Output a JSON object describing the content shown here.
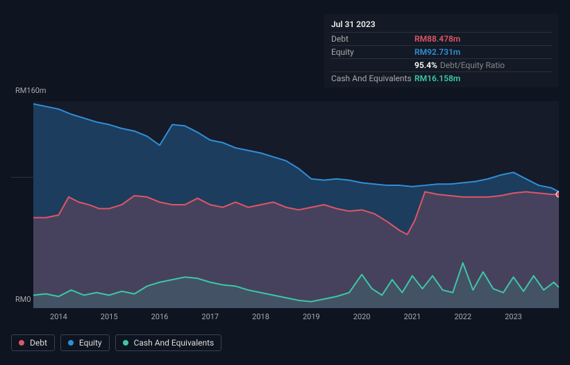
{
  "background_color": "#0e1420",
  "tooltip": {
    "date": "Jul 31 2023",
    "rows": [
      {
        "label": "Debt",
        "value": "RM88.478m",
        "color": "#e05565"
      },
      {
        "label": "Equity",
        "value": "RM92.731m",
        "color": "#2f8fd8"
      },
      {
        "label": "",
        "value": "95.4%",
        "suffix": "Debt/Equity Ratio",
        "color": "#ffffff"
      },
      {
        "label": "Cash And Equivalents",
        "value": "RM16.158m",
        "color": "#3bc9a6"
      }
    ]
  },
  "chart": {
    "type": "area",
    "y_max": 160,
    "y_min": 0,
    "y_top_label": "RM160m",
    "y_bot_label": "RM0",
    "ref_lines_y": [
      255
    ],
    "plot_bg": "#151b29",
    "x_years": [
      "2014",
      "2015",
      "2016",
      "2017",
      "2018",
      "2019",
      "2020",
      "2021",
      "2022",
      "2023"
    ],
    "x_start": 2013.5,
    "x_end": 2023.9,
    "series": {
      "equity": {
        "color": "#2f8fd8",
        "fill": "rgba(47,143,216,0.30)",
        "stroke_width": 2,
        "points": [
          [
            2013.5,
            158
          ],
          [
            2013.75,
            156
          ],
          [
            2014.0,
            154
          ],
          [
            2014.25,
            150
          ],
          [
            2014.5,
            147
          ],
          [
            2014.75,
            144
          ],
          [
            2015.0,
            142
          ],
          [
            2015.25,
            139
          ],
          [
            2015.5,
            137
          ],
          [
            2015.75,
            133
          ],
          [
            2016.0,
            126
          ],
          [
            2016.25,
            142
          ],
          [
            2016.5,
            141
          ],
          [
            2016.75,
            136
          ],
          [
            2017.0,
            130
          ],
          [
            2017.25,
            128
          ],
          [
            2017.5,
            124
          ],
          [
            2017.75,
            122
          ],
          [
            2018.0,
            120
          ],
          [
            2018.25,
            117
          ],
          [
            2018.5,
            114
          ],
          [
            2018.75,
            108
          ],
          [
            2019.0,
            100
          ],
          [
            2019.25,
            99
          ],
          [
            2019.5,
            100
          ],
          [
            2019.75,
            99
          ],
          [
            2020.0,
            97
          ],
          [
            2020.25,
            96
          ],
          [
            2020.5,
            95
          ],
          [
            2020.75,
            95
          ],
          [
            2021.0,
            94
          ],
          [
            2021.25,
            95
          ],
          [
            2021.5,
            96
          ],
          [
            2021.75,
            96
          ],
          [
            2022.0,
            97
          ],
          [
            2022.25,
            98
          ],
          [
            2022.5,
            100
          ],
          [
            2022.75,
            103
          ],
          [
            2023.0,
            105
          ],
          [
            2023.25,
            100
          ],
          [
            2023.5,
            95
          ],
          [
            2023.75,
            93
          ],
          [
            2023.9,
            90
          ]
        ]
      },
      "debt": {
        "color": "#e05565",
        "fill": "rgba(224,85,101,0.22)",
        "stroke_width": 2,
        "points": [
          [
            2013.5,
            70
          ],
          [
            2013.75,
            70
          ],
          [
            2014.0,
            72
          ],
          [
            2014.2,
            86
          ],
          [
            2014.4,
            82
          ],
          [
            2014.6,
            80
          ],
          [
            2014.8,
            77
          ],
          [
            2015.0,
            77
          ],
          [
            2015.25,
            80
          ],
          [
            2015.5,
            87
          ],
          [
            2015.75,
            86
          ],
          [
            2016.0,
            82
          ],
          [
            2016.25,
            80
          ],
          [
            2016.5,
            80
          ],
          [
            2016.75,
            85
          ],
          [
            2017.0,
            80
          ],
          [
            2017.25,
            78
          ],
          [
            2017.5,
            82
          ],
          [
            2017.75,
            78
          ],
          [
            2018.0,
            80
          ],
          [
            2018.25,
            82
          ],
          [
            2018.5,
            78
          ],
          [
            2018.75,
            76
          ],
          [
            2019.0,
            78
          ],
          [
            2019.25,
            80
          ],
          [
            2019.5,
            77
          ],
          [
            2019.75,
            75
          ],
          [
            2020.0,
            76
          ],
          [
            2020.25,
            73
          ],
          [
            2020.5,
            67
          ],
          [
            2020.75,
            60
          ],
          [
            2020.9,
            57
          ],
          [
            2021.05,
            68
          ],
          [
            2021.25,
            90
          ],
          [
            2021.5,
            88
          ],
          [
            2021.75,
            87
          ],
          [
            2022.0,
            86
          ],
          [
            2022.25,
            86
          ],
          [
            2022.5,
            86
          ],
          [
            2022.75,
            87
          ],
          [
            2023.0,
            89
          ],
          [
            2023.25,
            90
          ],
          [
            2023.5,
            89
          ],
          [
            2023.75,
            88
          ],
          [
            2023.9,
            88
          ]
        ]
      },
      "cash": {
        "color": "#3bc9a6",
        "fill": "rgba(59,201,166,0.12)",
        "stroke_width": 2,
        "points": [
          [
            2013.5,
            10
          ],
          [
            2013.75,
            11
          ],
          [
            2014.0,
            9
          ],
          [
            2014.25,
            14
          ],
          [
            2014.5,
            10
          ],
          [
            2014.75,
            12
          ],
          [
            2015.0,
            10
          ],
          [
            2015.25,
            13
          ],
          [
            2015.5,
            11
          ],
          [
            2015.75,
            17
          ],
          [
            2016.0,
            20
          ],
          [
            2016.25,
            22
          ],
          [
            2016.5,
            24
          ],
          [
            2016.75,
            23
          ],
          [
            2017.0,
            20
          ],
          [
            2017.25,
            18
          ],
          [
            2017.5,
            17
          ],
          [
            2017.75,
            14
          ],
          [
            2018.0,
            12
          ],
          [
            2018.25,
            10
          ],
          [
            2018.5,
            8
          ],
          [
            2018.75,
            6
          ],
          [
            2019.0,
            5
          ],
          [
            2019.25,
            7
          ],
          [
            2019.5,
            9
          ],
          [
            2019.75,
            12
          ],
          [
            2020.0,
            26
          ],
          [
            2020.2,
            15
          ],
          [
            2020.4,
            10
          ],
          [
            2020.6,
            22
          ],
          [
            2020.8,
            12
          ],
          [
            2021.0,
            25
          ],
          [
            2021.2,
            15
          ],
          [
            2021.4,
            25
          ],
          [
            2021.6,
            14
          ],
          [
            2021.8,
            12
          ],
          [
            2022.0,
            35
          ],
          [
            2022.2,
            14
          ],
          [
            2022.4,
            28
          ],
          [
            2022.6,
            15
          ],
          [
            2022.8,
            12
          ],
          [
            2023.0,
            24
          ],
          [
            2023.2,
            13
          ],
          [
            2023.4,
            25
          ],
          [
            2023.6,
            14
          ],
          [
            2023.8,
            20
          ],
          [
            2023.9,
            16
          ]
        ]
      }
    }
  },
  "legend": [
    {
      "label": "Debt",
      "color": "#e05565"
    },
    {
      "label": "Equity",
      "color": "#2f8fd8"
    },
    {
      "label": "Cash And Equivalents",
      "color": "#3bc9a6"
    }
  ]
}
